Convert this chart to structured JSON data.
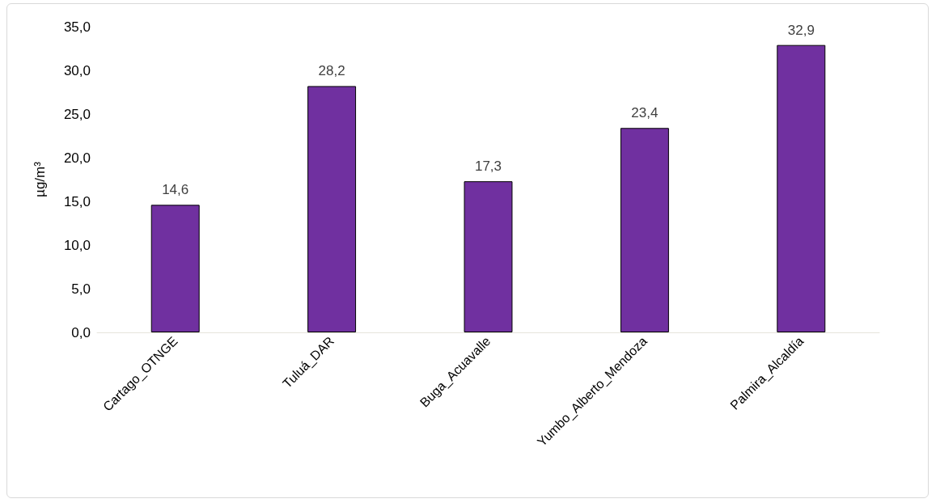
{
  "chart_data": {
    "type": "bar",
    "ylabel": "µg/m³",
    "categories": [
      "Cartago_OTNGE",
      "Tuluá_DAR",
      "Buga_Acuavalle",
      "Yumbo_Alberto_Mendoza",
      "Palmira_Alcaldía"
    ],
    "values": [
      14.6,
      28.2,
      17.3,
      23.4,
      32.9
    ],
    "value_labels": [
      "14,6",
      "28,2",
      "17,3",
      "23,4",
      "32,9"
    ],
    "color": "#7030a0",
    "ylim": [
      0,
      35
    ],
    "yticks": [
      {
        "value": 0,
        "label": "0,0"
      },
      {
        "value": 5,
        "label": "5,0"
      },
      {
        "value": 10,
        "label": "10,0"
      },
      {
        "value": 15,
        "label": "15,0"
      },
      {
        "value": 20,
        "label": "20,0"
      },
      {
        "value": 25,
        "label": "25,0"
      },
      {
        "value": 30,
        "label": "30,0"
      },
      {
        "value": 35,
        "label": "35,0"
      }
    ],
    "grid": false
  }
}
